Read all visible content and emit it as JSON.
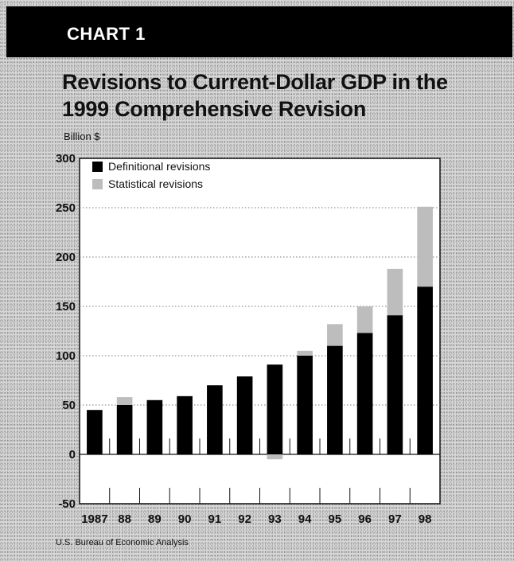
{
  "banner": {
    "label": "CHART 1"
  },
  "chart_data": {
    "type": "bar",
    "stacked": true,
    "title": "Revisions to Current-Dollar GDP in the 1999 Comprehensive Revision",
    "ylabel": "Billion $",
    "xlabel": "",
    "ylim": [
      -50,
      300
    ],
    "yticks": [
      -50,
      0,
      50,
      100,
      150,
      200,
      250,
      300
    ],
    "ytick_labels": [
      "-50",
      "0",
      "50",
      "100",
      "150",
      "200",
      "250",
      "300"
    ],
    "categories": [
      "1987",
      "88",
      "89",
      "90",
      "91",
      "92",
      "93",
      "94",
      "95",
      "96",
      "97",
      "98"
    ],
    "series": [
      {
        "name": "Definitional revisions",
        "color": "#000000",
        "values": [
          45,
          50,
          55,
          59,
          70,
          79,
          91,
          100,
          110,
          123,
          141,
          170
        ]
      },
      {
        "name": "Statistical revisions",
        "color": "#bdbdbd",
        "values": [
          0,
          8,
          0,
          0,
          0,
          0,
          -5,
          5,
          22,
          27,
          47,
          81
        ]
      }
    ],
    "grid": true,
    "legend": "top-left"
  },
  "source": "U.S. Bureau of Economic Analysis"
}
